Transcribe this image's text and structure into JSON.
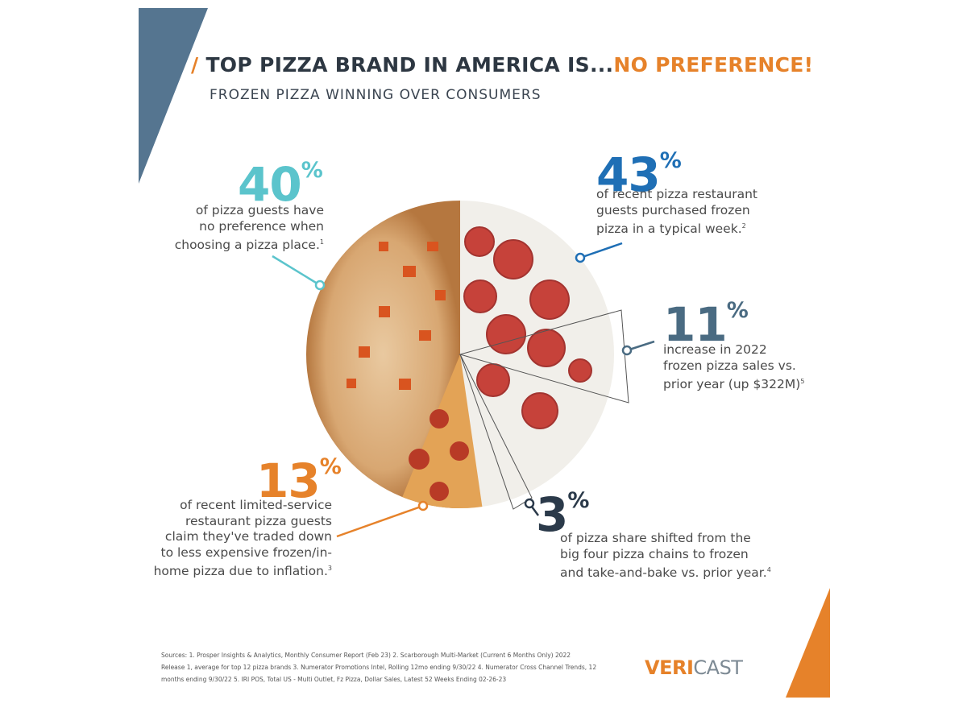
{
  "header": {
    "slash": "/",
    "title": "TOP PIZZA BRAND IN AMERICA IS...",
    "title_highlight": "NO PREFERENCE!",
    "subtitle": "FROZEN PIZZA WINNING OVER CONSUMERS"
  },
  "stats": [
    {
      "figure": "40",
      "unit": "%",
      "lines": [
        "of pizza guests have",
        "no preference when",
        "choosing a pizza place."
      ],
      "note": "1"
    },
    {
      "figure": "43",
      "unit": "%",
      "lines": [
        "of recent pizza restaurant",
        "guests purchased frozen",
        "pizza in a typical week."
      ],
      "note": "2"
    },
    {
      "figure": "11",
      "unit": "%",
      "lines": [
        "increase in 2022",
        "frozen pizza sales vs.",
        "prior year (up $322M)"
      ],
      "note": "5"
    },
    {
      "figure": "13",
      "unit": "%",
      "lines": [
        "of recent limited-service",
        "restaurant pizza guests",
        "claim they've traded down",
        "to less expensive frozen/in-",
        "home pizza due to inflation."
      ],
      "note": "3"
    },
    {
      "figure": "3",
      "unit": "%",
      "lines": [
        "of pizza share shifted from the",
        "big four pizza chains to frozen",
        "and take-and-bake vs. prior year."
      ],
      "note": "4"
    }
  ],
  "sources": [
    "Sources: 1. Prosper Insights & Analytics, Monthly Consumer Report (Feb 23) 2. Scarborough Multi-Market (Current 6 Months Only) 2022",
    "Release 1, average for top 12 pizza brands 3. Numerator Promotions Intel, Rolling 12mo ending 9/30/22 4. Numerator Cross Channel Trends, 12",
    "months ending 9/30/22 5. IRI POS, Total US - Multi Outlet, Fz Pizza, Dollar Sales, Latest 52 Weeks Ending 02-26-23"
  ],
  "logo": {
    "part1": "VERI",
    "part2": "CAST"
  }
}
